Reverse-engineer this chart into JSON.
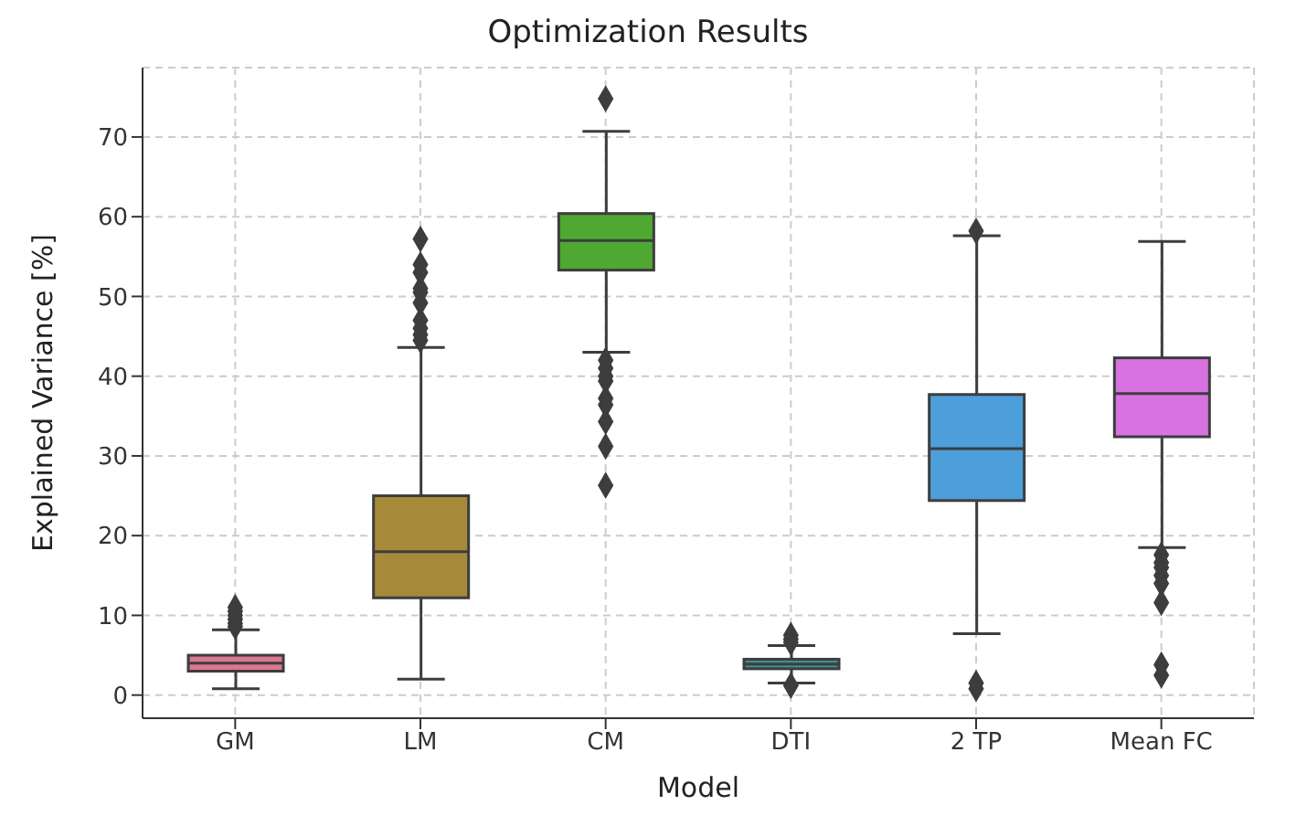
{
  "chart_data": {
    "type": "box",
    "title": "Optimization Results",
    "xlabel": "Model",
    "ylabel": "Explained Variance [%]",
    "categories": [
      "GM",
      "LM",
      "CM",
      "DTI",
      "2 TP",
      "Mean FC"
    ],
    "colors": [
      "#d9788f",
      "#a68a3a",
      "#4ea832",
      "#3f8f8a",
      "#4d9fdb",
      "#d872e0"
    ],
    "boxes": [
      {
        "low": 0.8,
        "q1": 3.0,
        "median": 4.0,
        "q3": 5.0,
        "high": 8.2,
        "outliers": [
          8.6,
          9.0,
          9.5,
          10.0,
          10.5,
          11.0
        ]
      },
      {
        "low": 2.0,
        "q1": 12.2,
        "median": 18.0,
        "q3": 25.0,
        "high": 43.6,
        "outliers": [
          44.5,
          45.2,
          46.0,
          47.0,
          49.2,
          50.5,
          51.0,
          53.0,
          54.0,
          57.2
        ]
      },
      {
        "low": 43.0,
        "q1": 53.3,
        "median": 57.0,
        "q3": 60.4,
        "high": 70.7,
        "outliers": [
          74.8,
          42.0,
          41.0,
          40.0,
          39.4,
          37.2,
          36.4,
          34.3,
          31.2,
          26.3
        ]
      },
      {
        "low": 1.5,
        "q1": 3.3,
        "median": 3.9,
        "q3": 4.5,
        "high": 6.2,
        "outliers": [
          6.6,
          7.0,
          7.5,
          1.2
        ]
      },
      {
        "low": 7.7,
        "q1": 24.4,
        "median": 30.9,
        "q3": 37.7,
        "high": 57.6,
        "outliers": [
          58.2,
          1.5,
          0.8
        ]
      },
      {
        "low": 18.5,
        "q1": 32.4,
        "median": 37.8,
        "q3": 42.3,
        "high": 56.9,
        "outliers": [
          17.6,
          16.6,
          16.0,
          15.0,
          14.0,
          11.6,
          3.8,
          2.5
        ]
      }
    ],
    "ylim": [
      -2.9,
      78.7
    ],
    "yticks": [
      0,
      10,
      20,
      30,
      40,
      50,
      60,
      70
    ],
    "grid": true,
    "marker": "diamond"
  }
}
